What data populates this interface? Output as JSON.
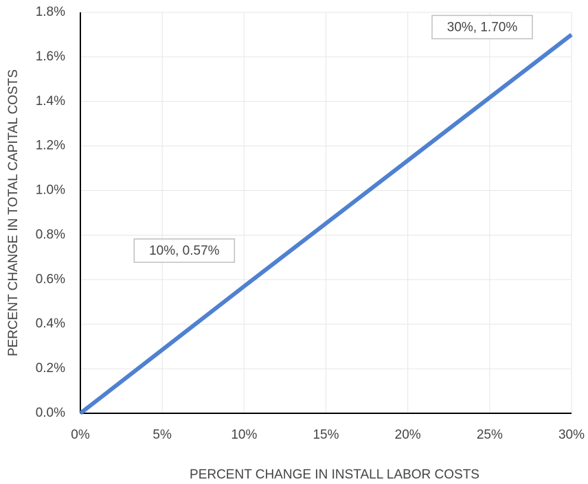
{
  "chart_data": {
    "type": "line",
    "xlabel": "PERCENT CHANGE IN INSTALL LABOR COSTS",
    "ylabel": "PERCENT CHANGE IN TOTAL CAPITAL COSTS",
    "x": [
      0,
      10,
      30
    ],
    "series": [
      {
        "color": "#4f81d0",
        "values": [
          0,
          0.57,
          1.7
        ]
      }
    ],
    "xlim": [
      0,
      30
    ],
    "xticks": [
      {
        "value": 0,
        "label": "0%"
      },
      {
        "value": 5,
        "label": "5%"
      },
      {
        "value": 10,
        "label": "10%"
      },
      {
        "value": 15,
        "label": "15%"
      },
      {
        "value": 20,
        "label": "20%"
      },
      {
        "value": 25,
        "label": "25%"
      },
      {
        "value": 30,
        "label": "30%"
      }
    ],
    "ylim": [
      0,
      1.8
    ],
    "yticks": [
      {
        "value": 0,
        "label": "0.0%"
      },
      {
        "value": 0.2,
        "label": "0.2%"
      },
      {
        "value": 0.4,
        "label": "0.4%"
      },
      {
        "value": 0.6,
        "label": "0.6%"
      },
      {
        "value": 0.8,
        "label": "0.8%"
      },
      {
        "value": 1.0,
        "label": "1.0%"
      },
      {
        "value": 1.2,
        "label": "1.2%"
      },
      {
        "value": 1.4,
        "label": "1.4%"
      },
      {
        "value": 1.6,
        "label": "1.6%"
      },
      {
        "value": 1.8,
        "label": "1.8%"
      }
    ],
    "grid": true,
    "annotations": [
      {
        "x": 10,
        "y": 0.57,
        "text": "10%, 0.57%"
      },
      {
        "x": 30,
        "y": 1.7,
        "text": "30%, 1.70%"
      }
    ]
  }
}
